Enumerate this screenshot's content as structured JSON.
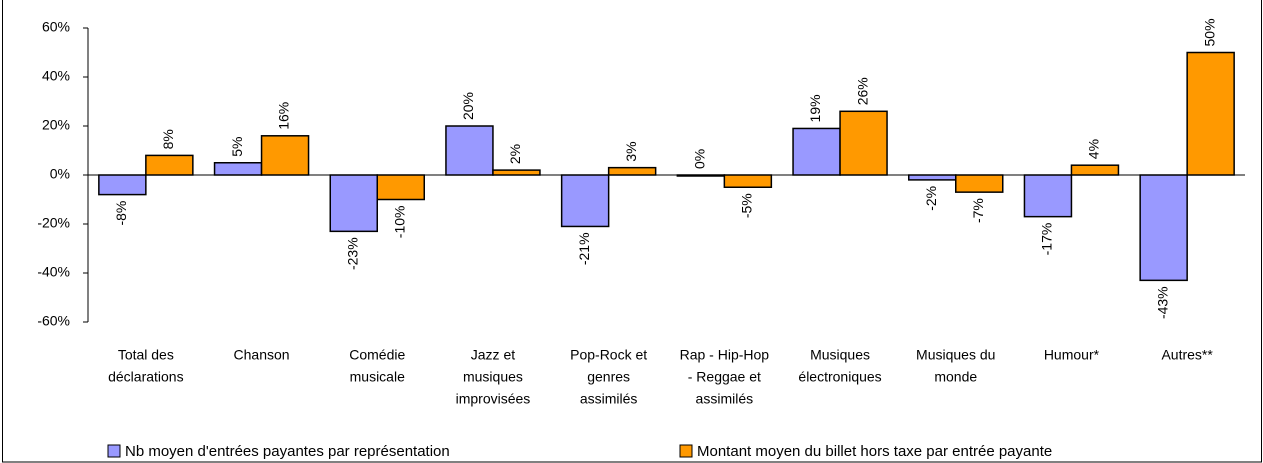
{
  "chart_data": {
    "type": "bar",
    "categories": [
      [
        "Total des",
        "déclarations"
      ],
      [
        "Chanson"
      ],
      [
        "Comédie",
        "musicale"
      ],
      [
        "Jazz et",
        "musiques",
        "improvisées"
      ],
      [
        "Pop-Rock et",
        "genres",
        "assimilés"
      ],
      [
        "Rap - Hip-Hop",
        "- Reggae et",
        "assimilés"
      ],
      [
        "Musiques",
        "électroniques"
      ],
      [
        "Musiques du",
        "monde"
      ],
      [
        "Humour*"
      ],
      [
        "Autres**"
      ]
    ],
    "series": [
      {
        "name": "Nb moyen d'entrées payantes par représentation",
        "color": "#9999ff",
        "values": [
          -8,
          5,
          -23,
          20,
          -21,
          0,
          19,
          -2,
          -17,
          -43
        ],
        "value_labels": [
          "-8%",
          "5%",
          "-23%",
          "20%",
          "-21%",
          "0%",
          "19%",
          "-2%",
          "-17%",
          "-43%"
        ]
      },
      {
        "name": "Montant moyen du billet hors taxe par entrée payante",
        "color": "#ff9900",
        "values": [
          8,
          16,
          -10,
          2,
          3,
          -5,
          26,
          -7,
          4,
          50
        ],
        "value_labels": [
          "8%",
          "16%",
          "-10%",
          "2%",
          "3%",
          "-5%",
          "26%",
          "-7%",
          "4%",
          "50%"
        ]
      }
    ],
    "ylim": [
      -60,
      60
    ],
    "yticks": [
      {
        "value": -60,
        "label": "-60%"
      },
      {
        "value": -40,
        "label": "-40%"
      },
      {
        "value": -20,
        "label": "-20%"
      },
      {
        "value": 0,
        "label": "0%"
      },
      {
        "value": 20,
        "label": "20%"
      },
      {
        "value": 40,
        "label": "40%"
      },
      {
        "value": 60,
        "label": "60%"
      }
    ]
  }
}
